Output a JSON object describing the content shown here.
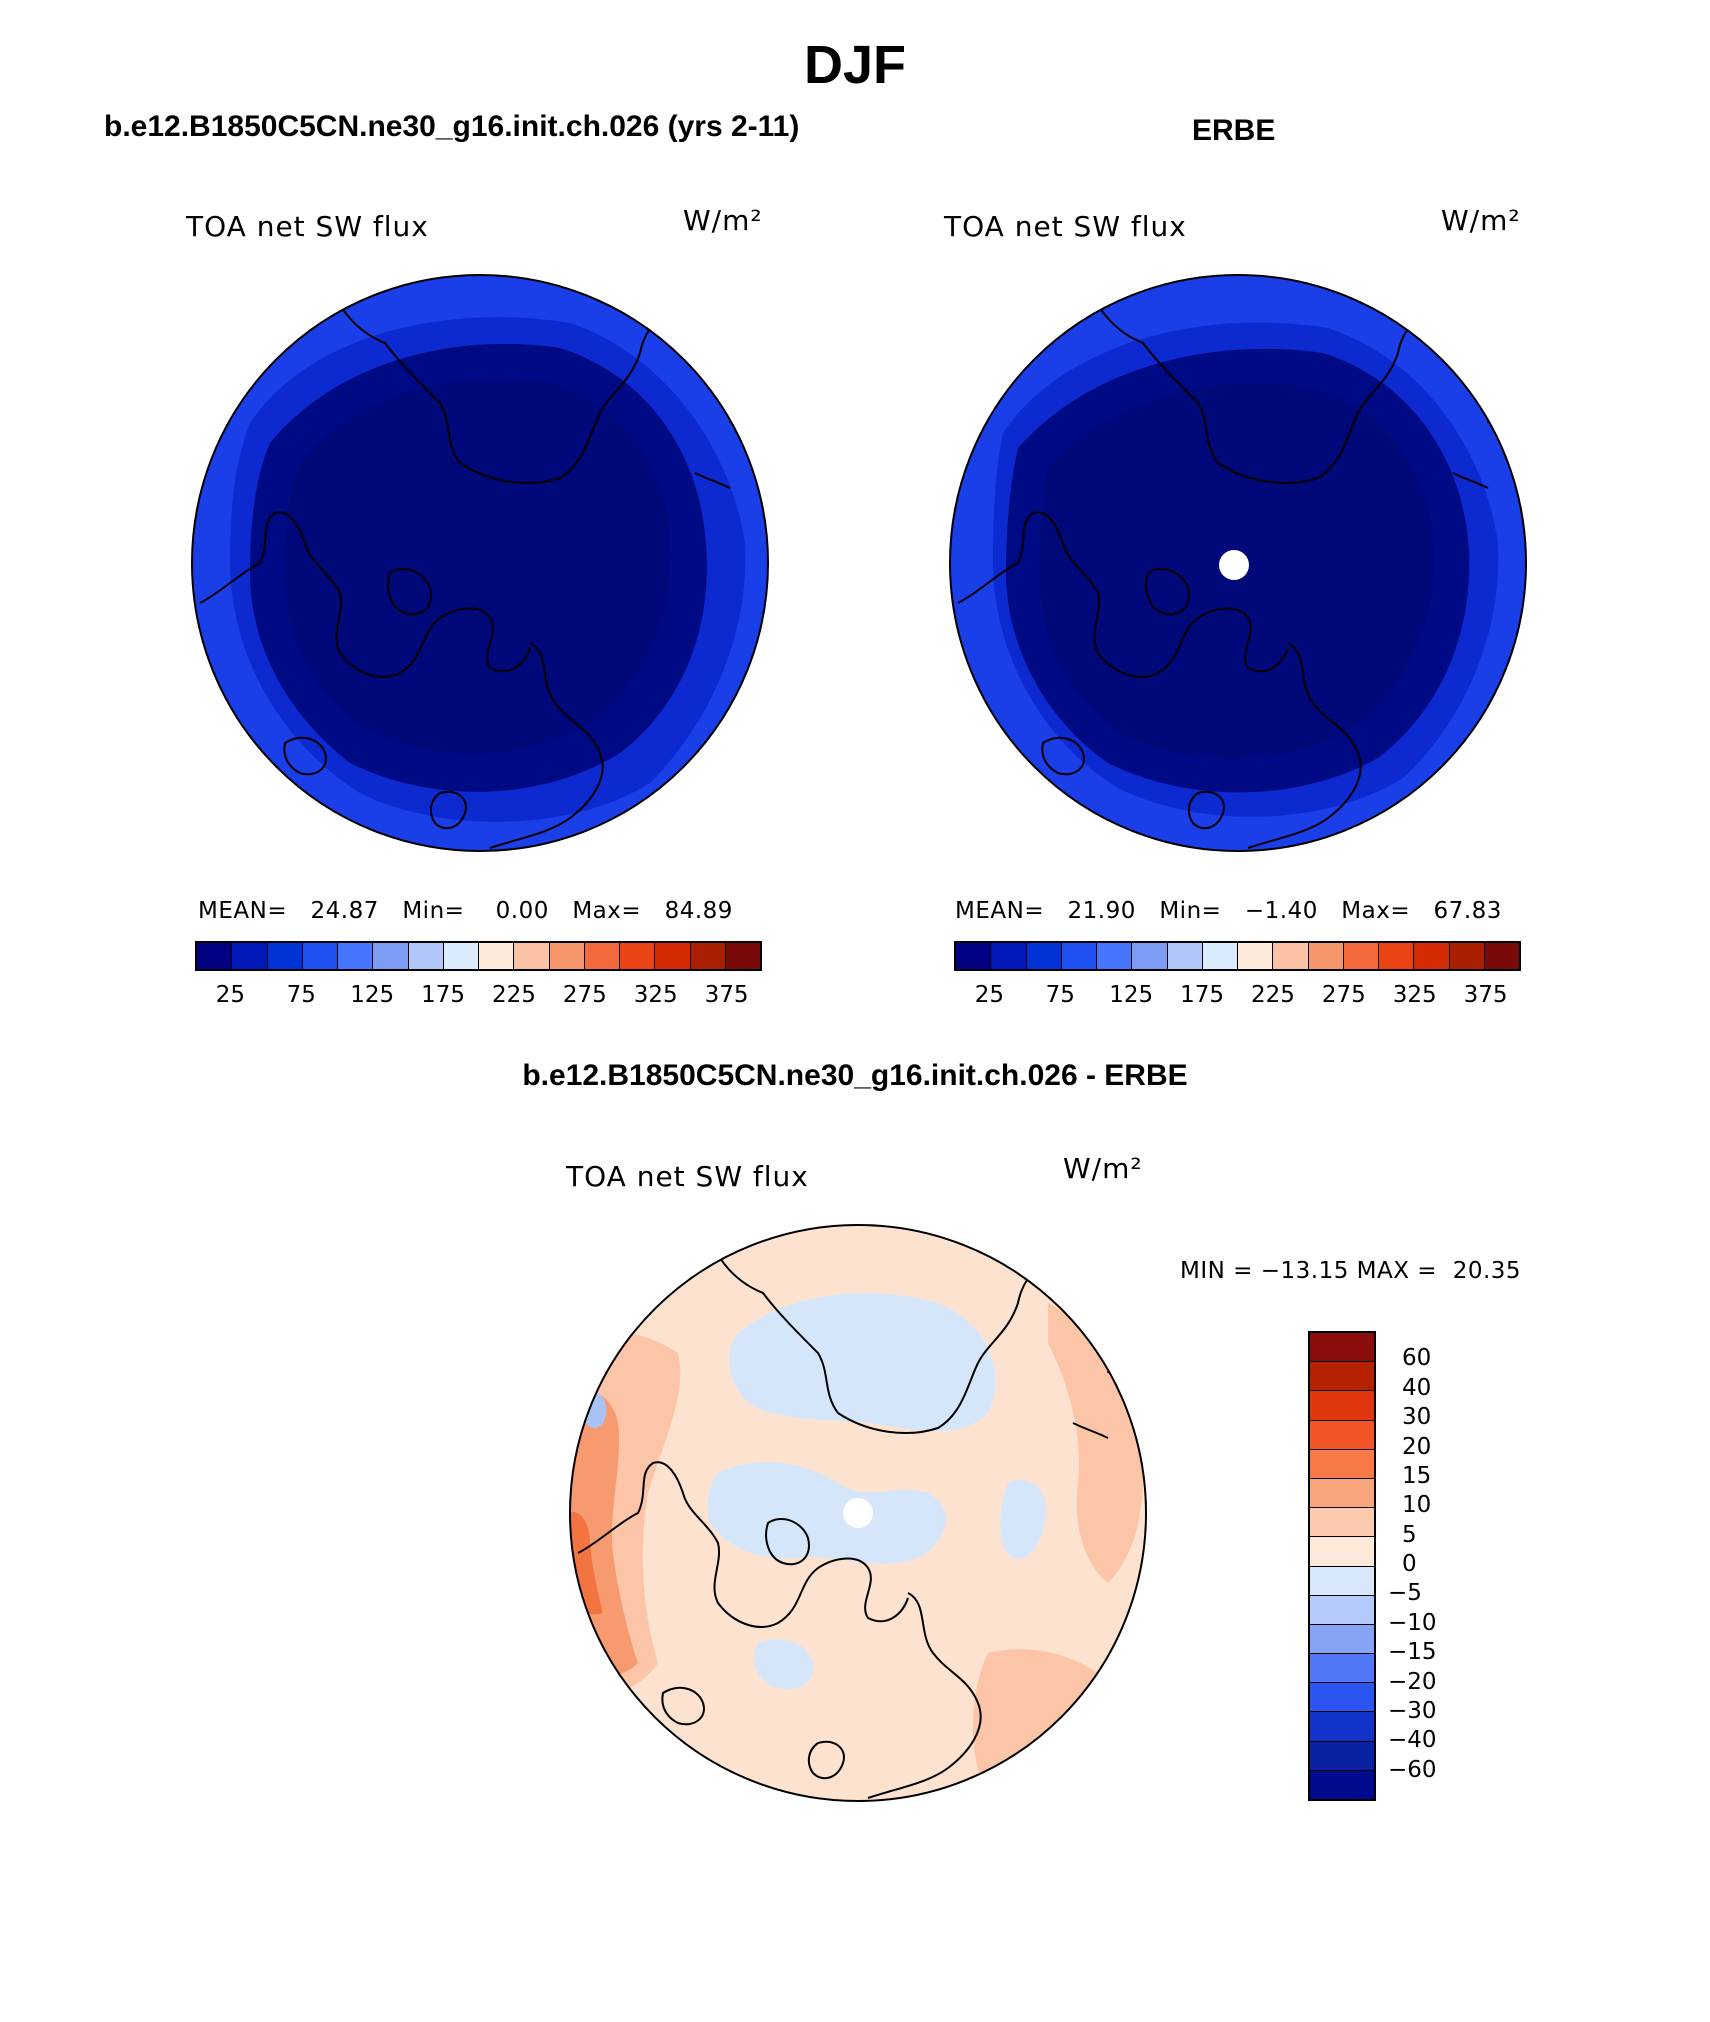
{
  "page_title": "DJF",
  "panels": {
    "model": {
      "title": "b.e12.B1850C5CN.ne30_g16.init.ch.026 (yrs 2-11)",
      "variable": "TOA net SW flux",
      "units": "W/m²",
      "stats": {
        "mean_label": "MEAN=",
        "mean": "24.87",
        "min_label": "Min=",
        "min": "0.00",
        "max_label": "Max=",
        "max": "84.89"
      }
    },
    "obs": {
      "title": "ERBE",
      "variable": "TOA net SW flux",
      "units": "W/m²",
      "stats": {
        "mean_label": "MEAN=",
        "mean": "21.90",
        "min_label": "Min=",
        "min": "−1.40",
        "max_label": "Max=",
        "max": "67.83"
      }
    },
    "diff": {
      "title": "b.e12.B1850C5CN.ne30_g16.init.ch.026 - ERBE",
      "variable": "TOA net SW flux",
      "units": "W/m²",
      "minmax": "MIN = −13.15 MAX =  20.35"
    }
  },
  "colorbars": {
    "abs": {
      "ticks": [
        "25",
        "75",
        "125",
        "175",
        "225",
        "275",
        "325",
        "375"
      ],
      "colors": [
        "#000080",
        "#0018b8",
        "#0033d6",
        "#1f51f2",
        "#4675ff",
        "#7d9cf4",
        "#b0c6f8",
        "#dbeafc",
        "#fdeadb",
        "#fcc2a5",
        "#f7956b",
        "#f4693c",
        "#ea4314",
        "#d42b05",
        "#a91f00",
        "#7a0a0a"
      ]
    },
    "diff": {
      "ticks": [
        "60",
        "40",
        "30",
        "20",
        "15",
        "10",
        "5",
        "0",
        "−5",
        "−10",
        "−15",
        "−20",
        "−30",
        "−40",
        "−60"
      ],
      "colors": [
        "#8a0c0c",
        "#b42200",
        "#e0370e",
        "#f35425",
        "#f77945",
        "#f9a47a",
        "#fccbaf",
        "#fdeadb",
        "#d8e8fc",
        "#b3cafa",
        "#86a4f5",
        "#5278f7",
        "#2b55f0",
        "#1233c9",
        "#0922a0",
        "#010a8c"
      ]
    }
  },
  "map_colors": {
    "ocean_outer": "#1a3fe8",
    "mid": "#0d2ad0",
    "inner": "#000a84",
    "core": "#00087a",
    "diff_base": "#fde3cf",
    "diff_pos1": "#fcc5a8",
    "diff_pos2": "#f79a70",
    "diff_pos3": "#f47441",
    "diff_neg1": "#d5e6fb",
    "diff_neg2": "#a9c3f6",
    "missing": "#ffffff"
  }
}
